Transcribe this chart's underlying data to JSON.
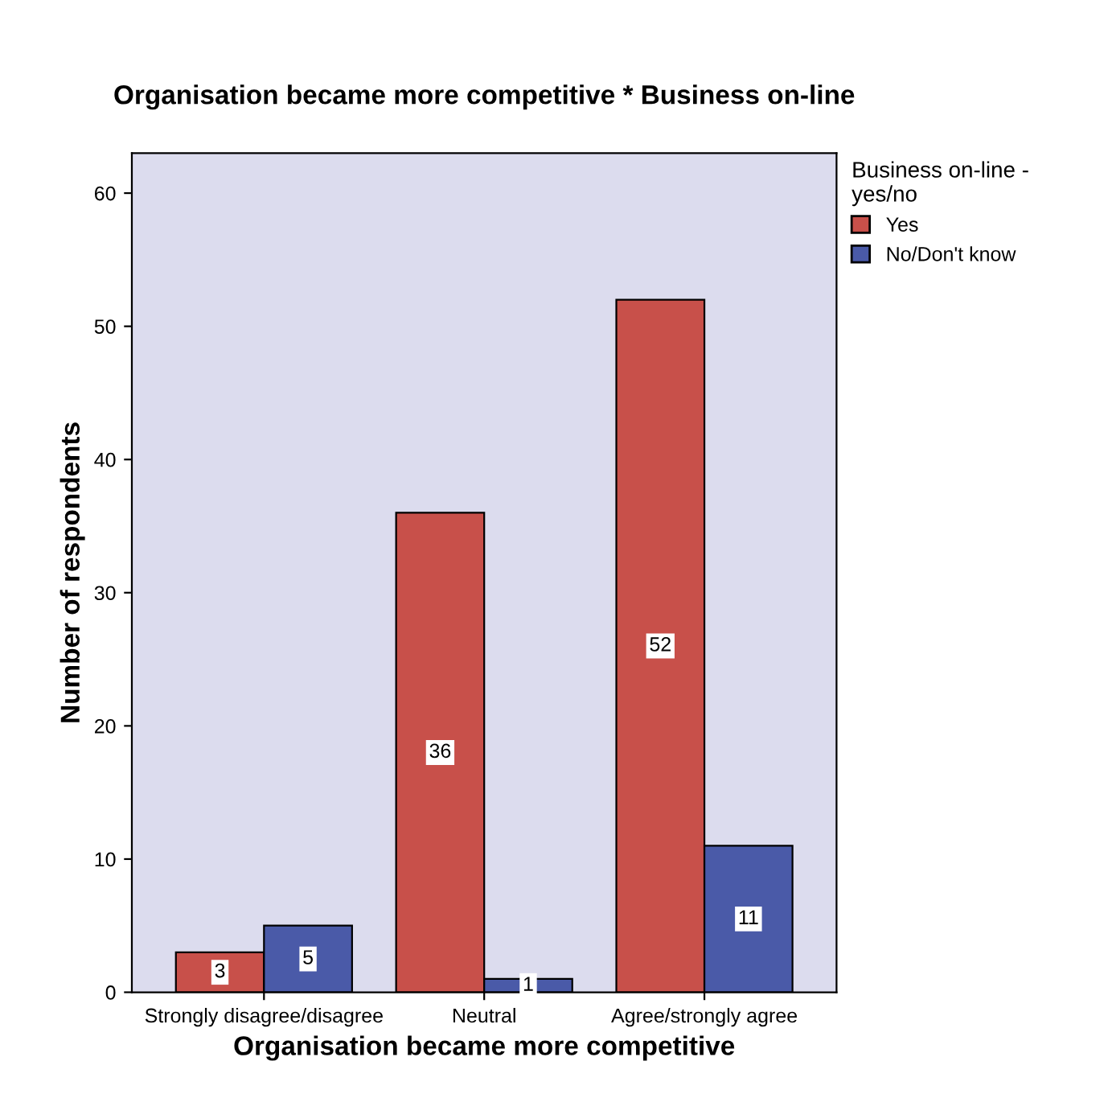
{
  "chart_data": {
    "type": "bar",
    "title": "Organisation became more competitive * Business on-line",
    "xlabel": "Organisation became more competitive",
    "ylabel": "Number of respondents",
    "legend_title": "Business on-line -\nyes/no",
    "categories": [
      "Strongly disagree/disagree",
      "Neutral",
      "Agree/strongly agree"
    ],
    "series": [
      {
        "name": "Yes",
        "color": "#c8504a",
        "values": [
          3,
          36,
          52
        ]
      },
      {
        "name": "No/Don't know",
        "color": "#4a5aa8",
        "values": [
          5,
          1,
          11
        ]
      }
    ],
    "ylim": [
      0,
      63
    ],
    "yticks": [
      0,
      10,
      20,
      30,
      40,
      50,
      60
    ],
    "grid": false,
    "legend": "top right",
    "data_labels": true
  }
}
